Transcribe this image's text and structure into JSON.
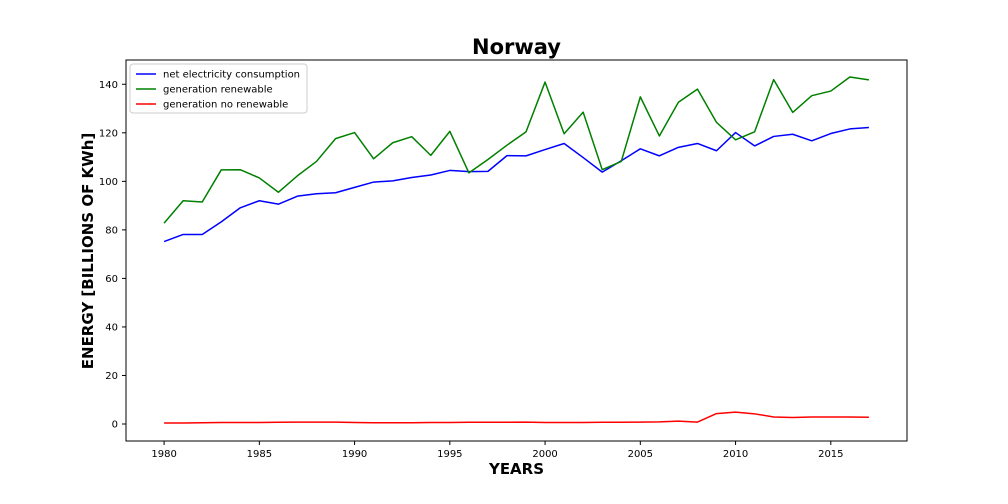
{
  "chart_data": {
    "type": "line",
    "title": "Norway",
    "xlabel": "YEARS",
    "ylabel": "ENERGY [BILLIONS OF KWh]",
    "xlim": [
      1978,
      2019
    ],
    "ylim": [
      -7,
      150
    ],
    "x_ticks": [
      1980,
      1985,
      1990,
      1995,
      2000,
      2005,
      2010,
      2015
    ],
    "y_ticks": [
      0,
      20,
      40,
      60,
      80,
      100,
      120,
      140
    ],
    "grid": false,
    "legend_position": "top-left",
    "x": [
      1980,
      1981,
      1982,
      1983,
      1984,
      1985,
      1986,
      1987,
      1988,
      1989,
      1990,
      1991,
      1992,
      1993,
      1994,
      1995,
      1996,
      1997,
      1998,
      1999,
      2000,
      2001,
      2002,
      2003,
      2004,
      2005,
      2006,
      2007,
      2008,
      2009,
      2010,
      2011,
      2012,
      2013,
      2014,
      2015,
      2016,
      2017
    ],
    "series": [
      {
        "name": "net electricity consumption",
        "color": "#0000ff",
        "values": [
          75.2,
          78.1,
          78.1,
          83.3,
          89.1,
          92.0,
          90.6,
          93.9,
          94.9,
          95.3,
          97.5,
          99.7,
          100.2,
          101.6,
          102.6,
          104.5,
          104.0,
          104.1,
          110.6,
          110.5,
          113.1,
          115.6,
          109.8,
          103.8,
          108.5,
          113.4,
          110.5,
          114.0,
          115.6,
          112.6,
          120.1,
          114.6,
          118.5,
          119.4,
          116.7,
          119.7,
          121.6,
          122.2
        ]
      },
      {
        "name": "generation renewable",
        "color": "#008000",
        "values": [
          82.8,
          92.0,
          91.5,
          104.7,
          104.8,
          101.4,
          95.5,
          102.3,
          108.2,
          117.6,
          120.1,
          109.3,
          115.9,
          118.4,
          110.7,
          120.6,
          103.5,
          109.0,
          114.9,
          120.4,
          140.9,
          119.6,
          128.5,
          104.8,
          108.2,
          134.8,
          118.7,
          132.6,
          138.0,
          124.3,
          117.1,
          120.4,
          141.9,
          128.4,
          135.3,
          137.2,
          143.0,
          141.8
        ]
      },
      {
        "name": "generation no renewable",
        "color": "#ff0000",
        "values": [
          0.4,
          0.4,
          0.5,
          0.6,
          0.6,
          0.6,
          0.7,
          0.8,
          0.8,
          0.8,
          0.6,
          0.5,
          0.5,
          0.5,
          0.6,
          0.6,
          0.7,
          0.7,
          0.7,
          0.8,
          0.6,
          0.6,
          0.6,
          0.7,
          0.7,
          0.8,
          0.9,
          1.2,
          0.8,
          4.3,
          4.9,
          4.2,
          2.9,
          2.7,
          2.9,
          2.9,
          2.9,
          2.8
        ]
      }
    ]
  }
}
